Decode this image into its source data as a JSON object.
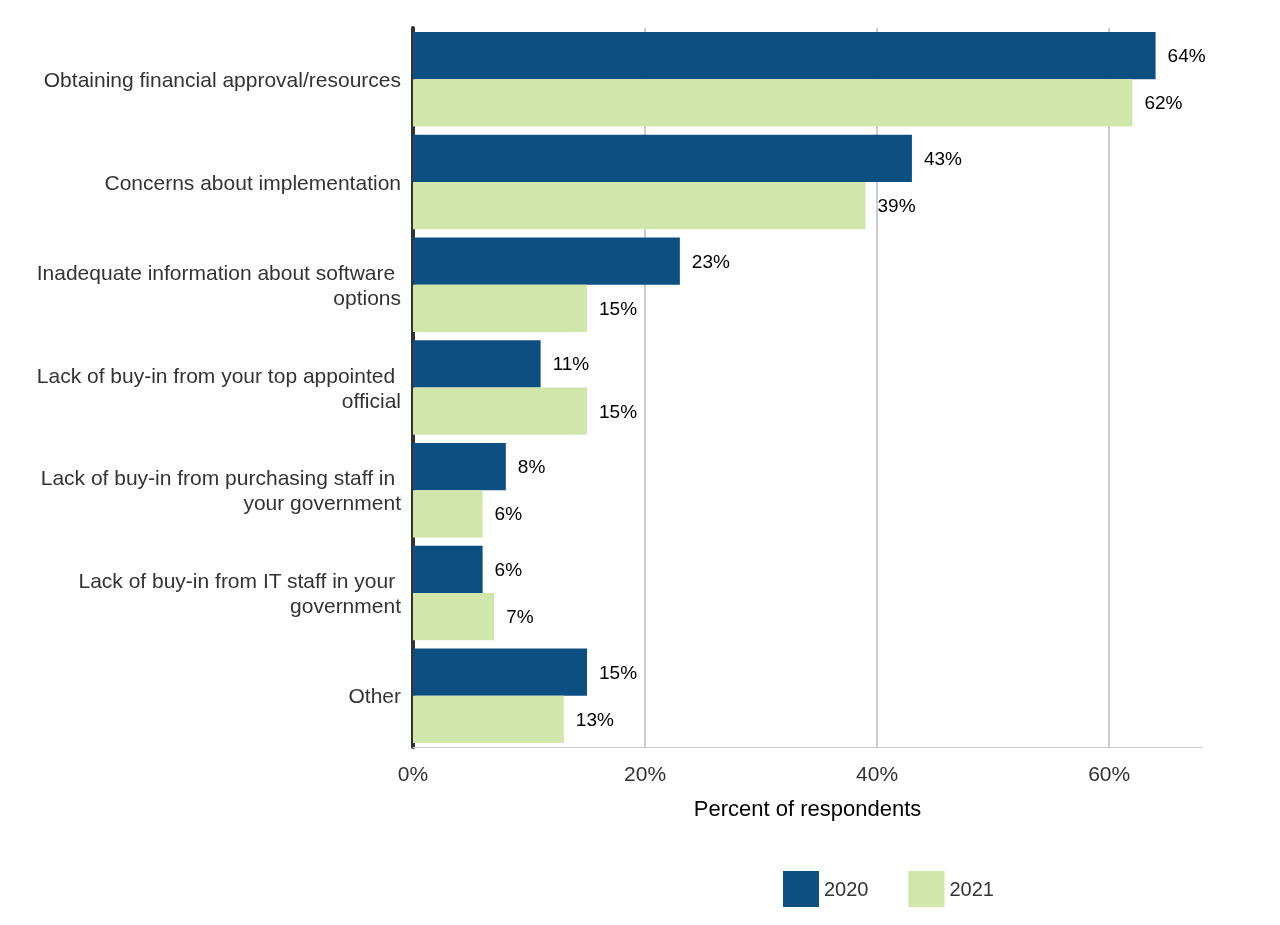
{
  "chart_data": {
    "type": "bar",
    "orientation": "horizontal",
    "xlabel": "Percent of respondents",
    "categories": [
      "Obtaining financial approval/resources",
      "Concerns about implementation",
      "Inadequate information about software options",
      "Lack of buy-in from your top appointed official",
      "Lack of buy-in from purchasing staff in your government",
      "Lack of buy-in from IT staff in your government",
      "Other"
    ],
    "series": [
      {
        "name": "2020",
        "color": "#0e4f82",
        "values": [
          64,
          43,
          23,
          11,
          8,
          6,
          15
        ],
        "value_labels": [
          "64%",
          "43%",
          "23%",
          "11%",
          "8%",
          "6%",
          "15%"
        ]
      },
      {
        "name": "2021",
        "color": "#d1e6ab",
        "values": [
          62,
          39,
          15,
          15,
          6,
          7,
          13
        ],
        "value_labels": [
          "62%",
          "39%",
          "15%",
          "15%",
          "6%",
          "7%",
          "13%"
        ]
      }
    ],
    "xticks": [
      {
        "value": 0,
        "label": "0%"
      },
      {
        "value": 20,
        "label": "20%"
      },
      {
        "value": 40,
        "label": "40%"
      },
      {
        "value": 60,
        "label": "60%"
      }
    ],
    "xlim": [
      0,
      68
    ],
    "grid": "x",
    "legend": "bottom"
  }
}
